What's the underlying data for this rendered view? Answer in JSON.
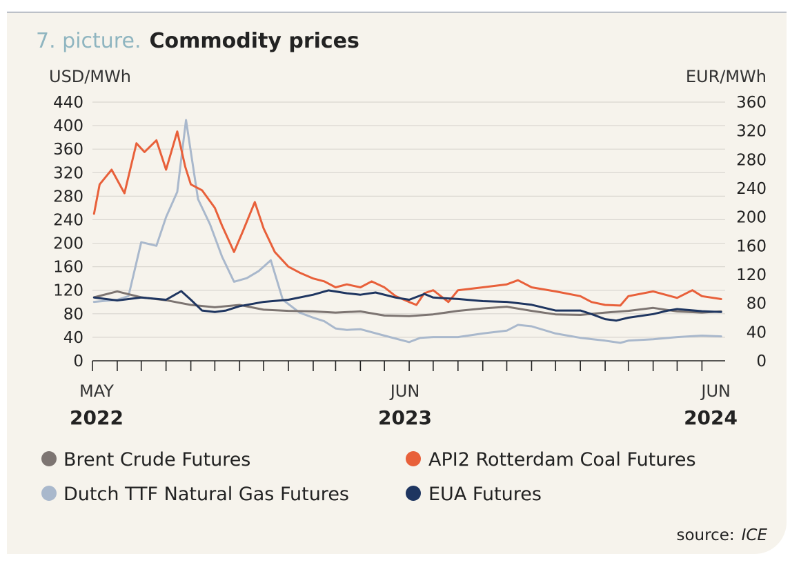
{
  "title": {
    "prefix": "7. picture.",
    "main": "Commodity prices"
  },
  "source": {
    "label": "source:",
    "name": "ICE"
  },
  "chart_data": {
    "type": "line",
    "left_axis": {
      "label": "USD/MWh",
      "min": 0,
      "max": 440,
      "ticks": [
        0,
        40,
        80,
        120,
        160,
        200,
        240,
        280,
        320,
        360,
        400,
        440
      ]
    },
    "right_axis": {
      "label": "EUR/MWh",
      "min": 0,
      "max": 360,
      "ticks": [
        0,
        40,
        80,
        120,
        160,
        200,
        240,
        280,
        320,
        360
      ]
    },
    "x_axis": {
      "start": "2022-05",
      "end": "2024-06",
      "labels": [
        {
          "month": "MAY",
          "year": "2022"
        },
        {
          "month": "JUN",
          "year": "2023"
        },
        {
          "month": "JUN",
          "year": "2024"
        }
      ]
    },
    "grid": true,
    "legend_position": "bottom",
    "series": [
      {
        "name": "Brent Crude Futures",
        "axis": "left",
        "color": "#7d7572",
        "points": [
          [
            "2022-05-03",
            108
          ],
          [
            "2022-06-01",
            118
          ],
          [
            "2022-07-01",
            108
          ],
          [
            "2022-08-01",
            103
          ],
          [
            "2022-09-01",
            95
          ],
          [
            "2022-10-01",
            91
          ],
          [
            "2022-11-01",
            95
          ],
          [
            "2022-12-01",
            87
          ],
          [
            "2023-01-01",
            85
          ],
          [
            "2023-02-01",
            84
          ],
          [
            "2023-03-01",
            82
          ],
          [
            "2023-04-01",
            84
          ],
          [
            "2023-05-01",
            77
          ],
          [
            "2023-06-01",
            76
          ],
          [
            "2023-07-01",
            79
          ],
          [
            "2023-08-01",
            85
          ],
          [
            "2023-09-01",
            89
          ],
          [
            "2023-10-01",
            92
          ],
          [
            "2023-11-01",
            85
          ],
          [
            "2023-12-01",
            79
          ],
          [
            "2024-01-01",
            78
          ],
          [
            "2024-02-01",
            82
          ],
          [
            "2024-03-01",
            85
          ],
          [
            "2024-04-01",
            90
          ],
          [
            "2024-05-01",
            84
          ],
          [
            "2024-06-01",
            82
          ],
          [
            "2024-06-25",
            84
          ]
        ]
      },
      {
        "name": "API2 Rotterdam Coal Futures",
        "axis": "left",
        "color": "#e8603a",
        "points": [
          [
            "2022-05-03",
            250
          ],
          [
            "2022-05-10",
            300
          ],
          [
            "2022-05-25",
            325
          ],
          [
            "2022-06-10",
            285
          ],
          [
            "2022-06-25",
            370
          ],
          [
            "2022-07-05",
            355
          ],
          [
            "2022-07-20",
            375
          ],
          [
            "2022-08-01",
            325
          ],
          [
            "2022-08-15",
            390
          ],
          [
            "2022-08-25",
            330
          ],
          [
            "2022-09-01",
            300
          ],
          [
            "2022-09-15",
            290
          ],
          [
            "2022-10-01",
            260
          ],
          [
            "2022-10-10",
            230
          ],
          [
            "2022-10-25",
            185
          ],
          [
            "2022-11-05",
            220
          ],
          [
            "2022-11-20",
            270
          ],
          [
            "2022-12-01",
            225
          ],
          [
            "2022-12-15",
            185
          ],
          [
            "2023-01-01",
            160
          ],
          [
            "2023-01-15",
            150
          ],
          [
            "2023-02-01",
            140
          ],
          [
            "2023-02-15",
            135
          ],
          [
            "2023-03-01",
            125
          ],
          [
            "2023-03-15",
            130
          ],
          [
            "2023-04-01",
            125
          ],
          [
            "2023-04-15",
            135
          ],
          [
            "2023-05-01",
            125
          ],
          [
            "2023-05-15",
            110
          ],
          [
            "2023-06-01",
            100
          ],
          [
            "2023-06-10",
            95
          ],
          [
            "2023-06-20",
            115
          ],
          [
            "2023-07-01",
            120
          ],
          [
            "2023-07-20",
            100
          ],
          [
            "2023-08-01",
            120
          ],
          [
            "2023-09-01",
            125
          ],
          [
            "2023-10-01",
            130
          ],
          [
            "2023-10-15",
            137
          ],
          [
            "2023-11-01",
            125
          ],
          [
            "2023-12-01",
            118
          ],
          [
            "2024-01-01",
            110
          ],
          [
            "2024-01-15",
            100
          ],
          [
            "2024-02-01",
            95
          ],
          [
            "2024-02-20",
            94
          ],
          [
            "2024-03-01",
            110
          ],
          [
            "2024-04-01",
            118
          ],
          [
            "2024-05-01",
            107
          ],
          [
            "2024-05-20",
            120
          ],
          [
            "2024-06-01",
            110
          ],
          [
            "2024-06-25",
            105
          ]
        ]
      },
      {
        "name": "Dutch TTF Natural Gas Futures",
        "axis": "right",
        "color": "#a9b8cc",
        "points": [
          [
            "2022-05-03",
            82
          ],
          [
            "2022-06-01",
            85
          ],
          [
            "2022-06-15",
            90
          ],
          [
            "2022-07-01",
            165
          ],
          [
            "2022-07-20",
            160
          ],
          [
            "2022-08-01",
            200
          ],
          [
            "2022-08-15",
            235
          ],
          [
            "2022-08-26",
            335
          ],
          [
            "2022-09-10",
            225
          ],
          [
            "2022-09-25",
            190
          ],
          [
            "2022-10-10",
            145
          ],
          [
            "2022-10-25",
            110
          ],
          [
            "2022-11-10",
            115
          ],
          [
            "2022-11-25",
            125
          ],
          [
            "2022-12-10",
            140
          ],
          [
            "2022-12-25",
            85
          ],
          [
            "2023-01-15",
            67
          ],
          [
            "2023-02-01",
            60
          ],
          [
            "2023-02-15",
            55
          ],
          [
            "2023-03-01",
            45
          ],
          [
            "2023-03-15",
            43
          ],
          [
            "2023-04-01",
            44
          ],
          [
            "2023-05-01",
            35
          ],
          [
            "2023-06-01",
            26
          ],
          [
            "2023-06-15",
            32
          ],
          [
            "2023-07-01",
            33
          ],
          [
            "2023-08-01",
            33
          ],
          [
            "2023-09-01",
            38
          ],
          [
            "2023-10-01",
            42
          ],
          [
            "2023-10-15",
            50
          ],
          [
            "2023-11-01",
            48
          ],
          [
            "2023-12-01",
            38
          ],
          [
            "2024-01-01",
            32
          ],
          [
            "2024-02-01",
            28
          ],
          [
            "2024-02-20",
            25
          ],
          [
            "2024-03-01",
            28
          ],
          [
            "2024-04-01",
            30
          ],
          [
            "2024-05-01",
            33
          ],
          [
            "2024-06-01",
            35
          ],
          [
            "2024-06-25",
            34
          ]
        ]
      },
      {
        "name": "EUA Futures",
        "axis": "right",
        "color": "#1e3560",
        "points": [
          [
            "2022-05-03",
            88
          ],
          [
            "2022-06-01",
            84
          ],
          [
            "2022-07-01",
            88
          ],
          [
            "2022-08-01",
            85
          ],
          [
            "2022-08-20",
            97
          ],
          [
            "2022-09-01",
            85
          ],
          [
            "2022-09-15",
            70
          ],
          [
            "2022-10-01",
            68
          ],
          [
            "2022-10-15",
            70
          ],
          [
            "2022-11-01",
            76
          ],
          [
            "2022-12-01",
            82
          ],
          [
            "2023-01-01",
            85
          ],
          [
            "2023-02-01",
            92
          ],
          [
            "2023-02-20",
            98
          ],
          [
            "2023-03-15",
            94
          ],
          [
            "2023-04-01",
            92
          ],
          [
            "2023-04-20",
            95
          ],
          [
            "2023-05-15",
            88
          ],
          [
            "2023-06-01",
            85
          ],
          [
            "2023-06-20",
            93
          ],
          [
            "2023-07-01",
            88
          ],
          [
            "2023-08-01",
            86
          ],
          [
            "2023-09-01",
            83
          ],
          [
            "2023-10-01",
            82
          ],
          [
            "2023-11-01",
            78
          ],
          [
            "2023-12-01",
            70
          ],
          [
            "2024-01-01",
            70
          ],
          [
            "2024-01-15",
            65
          ],
          [
            "2024-02-01",
            58
          ],
          [
            "2024-02-15",
            56
          ],
          [
            "2024-03-01",
            60
          ],
          [
            "2024-04-01",
            65
          ],
          [
            "2024-04-20",
            70
          ],
          [
            "2024-05-01",
            72
          ],
          [
            "2024-06-01",
            69
          ],
          [
            "2024-06-25",
            68
          ]
        ]
      }
    ]
  }
}
